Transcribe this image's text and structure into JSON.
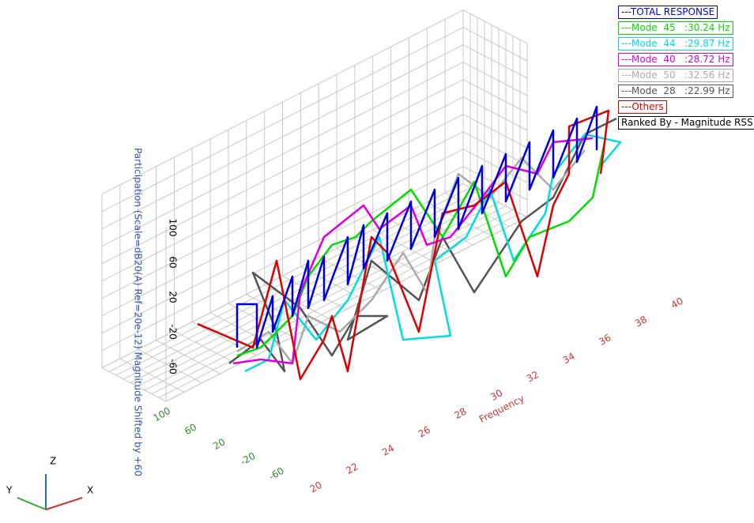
{
  "legend": [
    "---TOTAL RESPONSE",
    "---Mode  45   :30.24 Hz",
    "---Mode  44   :29.87 Hz",
    "---Mode  40   :28.72 Hz",
    "---Mode  50   :32.56 Hz",
    "---Mode  28   :22.99 Hz",
    "---Others"
  ],
  "legend_colors": [
    "#0000dd",
    "#00dd00",
    "#00dddd",
    "#dd00dd",
    "#aaaaaa",
    "#555555",
    "#dd0000"
  ],
  "ranked_by": "Ranked By - Magnitude RSS",
  "z_axis_label": "Participation (Scale=dB20(A) Ref=20e-12) Magnitude Shifted by +60",
  "z_ticks": [
    100,
    60,
    20,
    -20,
    -60
  ],
  "y_ticks": [
    100,
    60,
    20,
    -20,
    -60
  ],
  "x_axis_label": "Frequency",
  "x_ticks": [
    20,
    22,
    24,
    26,
    28,
    30,
    32,
    34,
    36,
    38,
    40
  ],
  "triad": [
    "Z",
    "Y",
    "X"
  ]
}
